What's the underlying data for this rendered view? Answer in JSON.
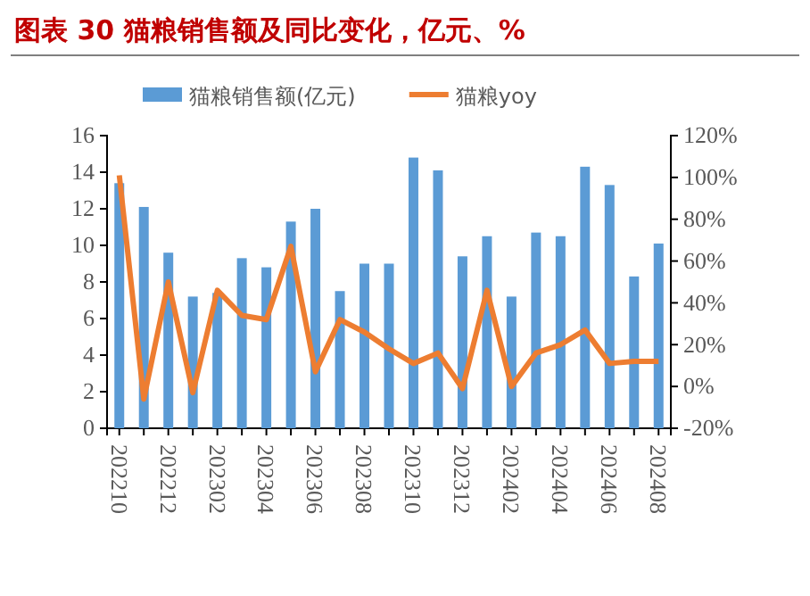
{
  "chart_data": {
    "type": "bar",
    "title": "图表 30 猫粮销售额及同比变化，亿元、%",
    "categories": [
      "202210",
      null,
      "202212",
      null,
      "202302",
      null,
      "202304",
      null,
      "202306",
      null,
      "202308",
      null,
      "202310",
      null,
      "202312",
      null,
      "202402",
      null,
      "202404",
      null,
      "202406",
      null,
      "202408"
    ],
    "series": [
      {
        "name": "猫粮销售额(亿元)",
        "color": "#5b9bd5",
        "values": [
          13.4,
          12.1,
          9.6,
          7.2,
          7.4,
          9.3,
          8.8,
          11.3,
          12.0,
          7.5,
          9.0,
          9.0,
          14.8,
          14.1,
          9.4,
          10.5,
          7.2,
          10.7,
          10.5,
          14.3,
          13.3,
          8.3,
          10.1
        ]
      },
      {
        "name": "猫粮yoy",
        "type": "line",
        "axis": "y2",
        "color": "#ed7d31",
        "values": [
          101,
          -6,
          50,
          -3,
          46,
          34,
          32,
          67,
          7,
          32,
          26,
          18,
          11,
          16,
          -1,
          46,
          0,
          16,
          20,
          27,
          11,
          12,
          12
        ]
      }
    ],
    "ylim": [
      0,
      16
    ],
    "yticks": [
      0,
      2,
      4,
      6,
      8,
      10,
      12,
      14,
      16
    ],
    "y2lim": [
      -20,
      120
    ],
    "y2ticks": [
      {
        "value": -20,
        "label": "-20%"
      },
      {
        "value": 0,
        "label": "0%"
      },
      {
        "value": 20,
        "label": "20%"
      },
      {
        "value": 40,
        "label": "40%"
      },
      {
        "value": 60,
        "label": "60%"
      },
      {
        "value": 80,
        "label": "80%"
      },
      {
        "value": 100,
        "label": "100%"
      },
      {
        "value": 120,
        "label": "120%"
      }
    ],
    "legend": "top",
    "grid": false,
    "marker": "none",
    "line_style": "solid"
  }
}
